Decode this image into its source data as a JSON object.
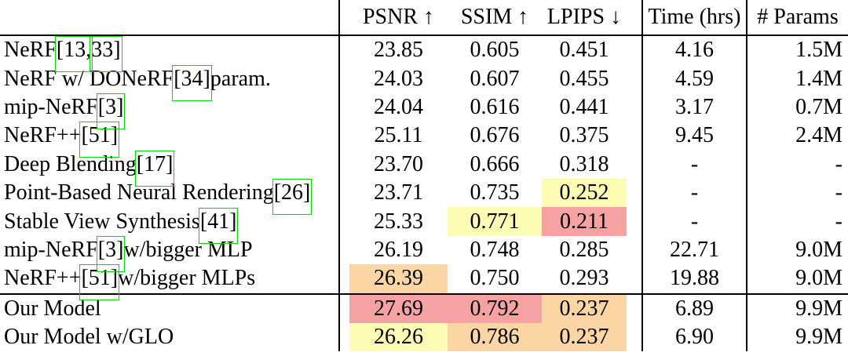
{
  "table": {
    "headers": {
      "method": "",
      "psnr": "PSNR ↑",
      "ssim": "SSIM ↑",
      "lpips": "LPIPS ↓",
      "time": "Time (hrs)",
      "params": "# Params"
    },
    "palette": {
      "best": "#f7a2a2",
      "second": "#fbd5a4",
      "third": "#fcfcb4",
      "link_box": "#00dd00"
    },
    "rows": [
      {
        "label": [
          {
            "t": "NeRF "
          },
          {
            "t": "[13,",
            "box": true
          },
          {
            "t": " "
          },
          {
            "t": "33]",
            "box": true
          }
        ],
        "psnr": {
          "v": "23.85"
        },
        "ssim": {
          "v": "0.605"
        },
        "lpips": {
          "v": "0.451"
        },
        "time": "4.16",
        "params": "1.5M"
      },
      {
        "label": [
          {
            "t": "NeRF w/ DONeRF "
          },
          {
            "t": "[34]",
            "box": true
          },
          {
            "t": " param."
          }
        ],
        "psnr": {
          "v": "24.03"
        },
        "ssim": {
          "v": "0.607"
        },
        "lpips": {
          "v": "0.455"
        },
        "time": "4.59",
        "params": "1.4M"
      },
      {
        "label": [
          {
            "t": "mip-NeRF "
          },
          {
            "t": "[3]",
            "box": true
          }
        ],
        "psnr": {
          "v": "24.04"
        },
        "ssim": {
          "v": "0.616"
        },
        "lpips": {
          "v": "0.441"
        },
        "time": "3.17",
        "params": "0.7M"
      },
      {
        "label": [
          {
            "t": "NeRF++ "
          },
          {
            "t": "[51]",
            "box": true
          }
        ],
        "psnr": {
          "v": "25.11"
        },
        "ssim": {
          "v": "0.676"
        },
        "lpips": {
          "v": "0.375"
        },
        "time": "9.45",
        "params": "2.4M"
      },
      {
        "label": [
          {
            "t": "Deep Blending "
          },
          {
            "t": "[17]",
            "box": true
          }
        ],
        "psnr": {
          "v": "23.70"
        },
        "ssim": {
          "v": "0.666"
        },
        "lpips": {
          "v": "0.318"
        },
        "time": "-",
        "params": "-"
      },
      {
        "label": [
          {
            "t": "Point-Based Neural Rendering "
          },
          {
            "t": "[26]",
            "box": true
          }
        ],
        "psnr": {
          "v": "23.71"
        },
        "ssim": {
          "v": "0.735"
        },
        "lpips": {
          "v": "0.252",
          "hl": "third"
        },
        "time": "-",
        "params": "-"
      },
      {
        "label": [
          {
            "t": "Stable View Synthesis "
          },
          {
            "t": "[41]",
            "box": true
          }
        ],
        "psnr": {
          "v": "25.33"
        },
        "ssim": {
          "v": "0.771",
          "hl": "third"
        },
        "lpips": {
          "v": "0.211",
          "hl": "best"
        },
        "time": "-",
        "params": "-"
      },
      {
        "label": [
          {
            "t": "mip-NeRF "
          },
          {
            "t": "[3]",
            "box": true
          },
          {
            "t": " w/bigger MLP"
          }
        ],
        "psnr": {
          "v": "26.19"
        },
        "ssim": {
          "v": "0.748"
        },
        "lpips": {
          "v": "0.285"
        },
        "time": "22.71",
        "params": "9.0M"
      },
      {
        "label": [
          {
            "t": "NeRF++ "
          },
          {
            "t": "[51]",
            "box": true
          },
          {
            "t": " w/bigger MLPs"
          }
        ],
        "psnr": {
          "v": "26.39",
          "hl": "second"
        },
        "ssim": {
          "v": "0.750"
        },
        "lpips": {
          "v": "0.293"
        },
        "time": "19.88",
        "params": "9.0M"
      },
      {
        "rule_top": true,
        "label": [
          {
            "t": "Our Model"
          }
        ],
        "psnr": {
          "v": "27.69",
          "hl": "best"
        },
        "ssim": {
          "v": "0.792",
          "hl": "best"
        },
        "lpips": {
          "v": "0.237",
          "hl": "second"
        },
        "time": "6.89",
        "params": "9.9M"
      },
      {
        "label": [
          {
            "t": "Our Model w/GLO"
          }
        ],
        "psnr": {
          "v": "26.26",
          "hl": "third"
        },
        "ssim": {
          "v": "0.786",
          "hl": "second"
        },
        "lpips": {
          "v": "0.237",
          "hl": "second"
        },
        "time": "6.90",
        "params": "9.9M"
      }
    ]
  }
}
